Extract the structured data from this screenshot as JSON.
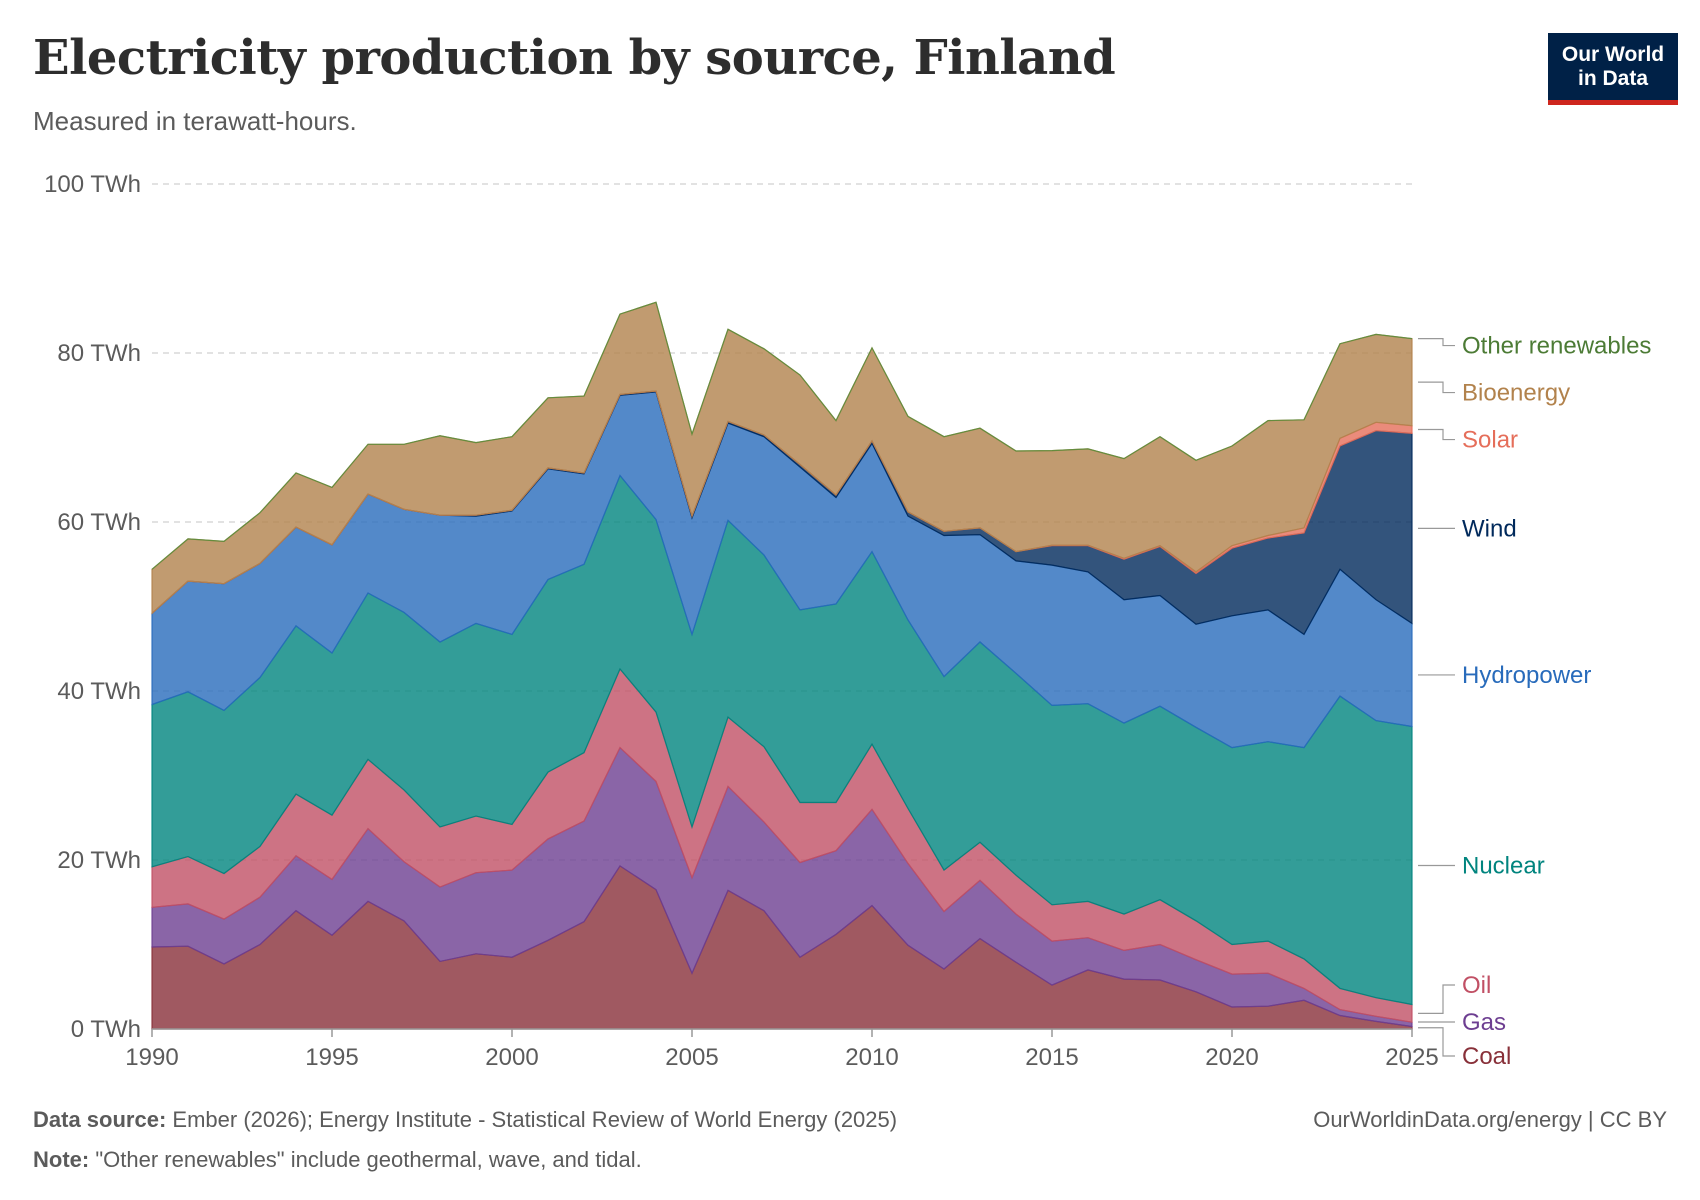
{
  "header": {
    "title": "Electricity production by source, Finland",
    "subtitle": "Measured in terawatt-hours."
  },
  "logo": {
    "line1": "Our World",
    "line2": "in Data"
  },
  "footer": {
    "source_label": "Data source:",
    "source_text": "Ember (2026); Energy Institute - Statistical Review of World Energy (2025)",
    "url_text": "OurWorldinData.org/energy | CC BY",
    "note_label": "Note:",
    "note_text": "\"Other renewables\" include geothermal, wave, and tidal."
  },
  "chart_data": {
    "type": "area",
    "stacked": true,
    "title": "Electricity production by source, Finland",
    "ylabel": "TWh",
    "ylim": [
      0,
      100
    ],
    "yticks": [
      0,
      20,
      40,
      60,
      80,
      100
    ],
    "ytick_labels": [
      "0 TWh",
      "20 TWh",
      "40 TWh",
      "60 TWh",
      "80 TWh",
      "100 TWh"
    ],
    "xlim": [
      1990,
      2025
    ],
    "xticks": [
      1990,
      1995,
      2000,
      2005,
      2010,
      2015,
      2020,
      2025
    ],
    "xtick_labels": [
      "1990",
      "1995",
      "2000",
      "2005",
      "2010",
      "2015",
      "2020",
      "2025"
    ],
    "grid": "horizontal dashed",
    "legend": "right, labels at series ends",
    "x": [
      1990,
      1991,
      1992,
      1993,
      1994,
      1995,
      1996,
      1997,
      1998,
      1999,
      2000,
      2001,
      2002,
      2003,
      2004,
      2005,
      2006,
      2007,
      2008,
      2009,
      2010,
      2011,
      2012,
      2013,
      2014,
      2015,
      2016,
      2017,
      2018,
      2019,
      2020,
      2021,
      2022,
      2023,
      2024,
      2025
    ],
    "series": [
      {
        "name": "Coal",
        "color": "#883039",
        "label_color": "#883039",
        "values": [
          9.7,
          9.8,
          7.7,
          10.0,
          14.0,
          11.1,
          15.1,
          12.8,
          8.0,
          8.9,
          8.5,
          10.5,
          12.7,
          19.3,
          16.5,
          6.6,
          16.4,
          14.0,
          8.5,
          11.2,
          14.6,
          9.9,
          7.1,
          10.7,
          7.9,
          5.2,
          7.0,
          5.9,
          5.8,
          4.4,
          2.6,
          2.7,
          3.4,
          1.6,
          0.9,
          0.3
        ]
      },
      {
        "name": "Gas",
        "color": "#6d3e91",
        "label_color": "#6d3e91",
        "values": [
          4.7,
          5.0,
          5.3,
          5.6,
          6.5,
          6.6,
          8.6,
          7.0,
          8.8,
          9.6,
          10.3,
          12.0,
          11.9,
          14.0,
          12.8,
          11.3,
          12.3,
          10.5,
          11.2,
          9.9,
          11.4,
          9.7,
          6.8,
          6.9,
          5.7,
          5.2,
          3.8,
          3.4,
          4.2,
          3.8,
          3.9,
          3.9,
          1.4,
          0.7,
          0.6,
          0.5
        ]
      },
      {
        "name": "Oil",
        "color": "#c15065",
        "label_color": "#c15065",
        "values": [
          4.8,
          5.6,
          5.4,
          6.0,
          7.3,
          7.6,
          8.2,
          8.5,
          7.1,
          6.7,
          5.4,
          7.9,
          8.1,
          9.3,
          8.2,
          6.0,
          8.2,
          8.9,
          7.1,
          5.7,
          7.7,
          6.5,
          4.9,
          4.5,
          4.6,
          4.3,
          4.3,
          4.3,
          5.3,
          4.6,
          3.5,
          3.8,
          3.5,
          2.5,
          2.2,
          2.1
        ]
      },
      {
        "name": "Nuclear",
        "color": "#00847e",
        "label_color": "#00847e",
        "values": [
          19.2,
          19.5,
          19.3,
          20.0,
          19.9,
          19.2,
          19.7,
          21.0,
          21.9,
          22.8,
          22.5,
          22.8,
          22.3,
          22.9,
          22.8,
          22.8,
          23.3,
          22.7,
          22.8,
          23.5,
          22.8,
          22.3,
          22.9,
          23.7,
          23.9,
          23.6,
          23.4,
          22.6,
          22.9,
          22.9,
          23.3,
          23.6,
          25.0,
          34.6,
          32.8,
          32.9
        ]
      },
      {
        "name": "Hydropower",
        "color": "#286bbb",
        "label_color": "#286bbb",
        "values": [
          10.8,
          13.1,
          15.0,
          13.5,
          11.7,
          12.8,
          11.7,
          12.2,
          15.0,
          12.7,
          14.6,
          13.1,
          10.7,
          9.5,
          15.1,
          13.8,
          11.5,
          14.0,
          16.9,
          12.6,
          12.8,
          12.3,
          16.7,
          12.7,
          13.3,
          16.6,
          15.6,
          14.6,
          13.1,
          12.2,
          15.6,
          15.6,
          13.4,
          15.0,
          14.3,
          12.2
        ]
      },
      {
        "name": "Wind",
        "color": "#00295b",
        "label_color": "#00295b",
        "values": [
          0.0,
          0.0,
          0.0,
          0.0,
          0.0,
          0.0,
          0.0,
          0.0,
          0.0,
          0.1,
          0.1,
          0.1,
          0.1,
          0.1,
          0.1,
          0.2,
          0.2,
          0.2,
          0.3,
          0.3,
          0.3,
          0.5,
          0.5,
          0.8,
          1.1,
          2.3,
          3.1,
          4.8,
          5.8,
          6.0,
          8.0,
          8.5,
          12.0,
          14.6,
          20.0,
          22.5
        ]
      },
      {
        "name": "Solar",
        "color": "#e56e5a",
        "label_color": "#e56e5a",
        "values": [
          0,
          0,
          0,
          0,
          0,
          0,
          0,
          0,
          0,
          0,
          0,
          0,
          0,
          0,
          0,
          0,
          0,
          0,
          0,
          0,
          0,
          0,
          0,
          0,
          0,
          0.05,
          0.05,
          0.1,
          0.1,
          0.2,
          0.3,
          0.3,
          0.6,
          0.9,
          1.0,
          0.9
        ]
      },
      {
        "name": "Bioenergy",
        "color": "#b2824c",
        "label_color": "#b2824c",
        "values": [
          5.2,
          5.0,
          5.0,
          6.0,
          6.4,
          6.8,
          5.9,
          7.7,
          9.4,
          8.6,
          8.7,
          8.3,
          9.1,
          9.5,
          10.5,
          9.7,
          10.9,
          10.2,
          10.6,
          8.8,
          11.0,
          11.3,
          11.2,
          11.8,
          11.9,
          11.2,
          11.4,
          11.8,
          12.9,
          13.2,
          11.8,
          13.6,
          12.8,
          11.2,
          10.4,
          10.3
        ]
      },
      {
        "name": "Other renewables",
        "color": "#5b8d3b",
        "label_color": "#4c7b35",
        "values": [
          0,
          0,
          0,
          0,
          0,
          0,
          0,
          0,
          0,
          0,
          0,
          0,
          0,
          0,
          0,
          0,
          0,
          0,
          0,
          0,
          0,
          0,
          0,
          0,
          0,
          0,
          0,
          0,
          0,
          0,
          0,
          0,
          0,
          0,
          0,
          0
        ]
      }
    ]
  }
}
